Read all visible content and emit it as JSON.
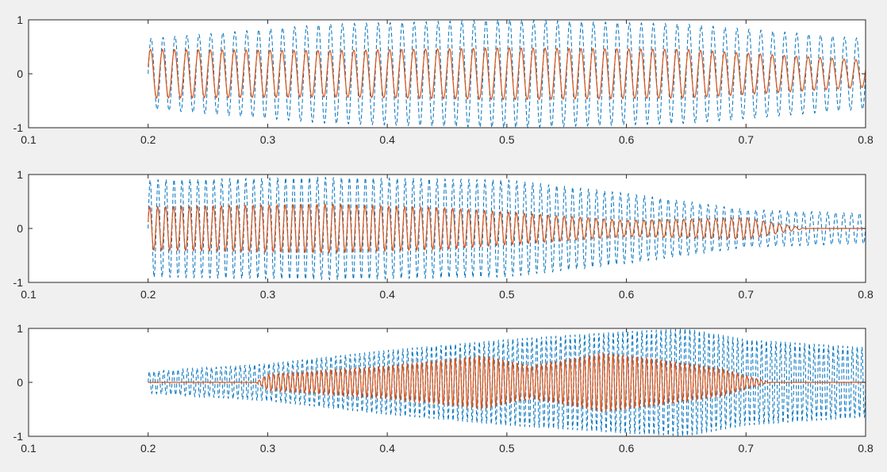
{
  "figure": {
    "background": "#f0f0f0",
    "axes_background": "#ffffff",
    "axes_color": "#262626"
  },
  "chart_data": [
    {
      "type": "line",
      "xlim": [
        0.1,
        0.8
      ],
      "ylim": [
        -1,
        1
      ],
      "xticks": [
        "0.1",
        "0.2",
        "0.3",
        "0.4",
        "0.5",
        "0.6",
        "0.7",
        "0.8"
      ],
      "yticks": [
        "1",
        "0",
        "-1"
      ],
      "grid": false,
      "x_range_of_signal": [
        0.2,
        0.8
      ],
      "series": [
        {
          "style": "dashed",
          "color": "#0072bd",
          "cycles": 60,
          "envelope": [
            [
              0.2,
              0.65
            ],
            [
              0.35,
              0.92
            ],
            [
              0.5,
              1.0
            ],
            [
              0.65,
              0.92
            ],
            [
              0.8,
              0.65
            ]
          ]
        },
        {
          "style": "solid",
          "color": "#d95319",
          "cycles": 60,
          "envelope": [
            [
              0.2,
              0.45
            ],
            [
              0.35,
              0.43
            ],
            [
              0.5,
              0.48
            ],
            [
              0.65,
              0.45
            ],
            [
              0.8,
              0.25
            ]
          ]
        }
      ]
    },
    {
      "type": "line",
      "xlim": [
        0.1,
        0.8
      ],
      "ylim": [
        -1,
        1
      ],
      "xticks": [
        "0.1",
        "0.2",
        "0.3",
        "0.4",
        "0.5",
        "0.6",
        "0.7",
        "0.8"
      ],
      "yticks": [
        "1",
        "0",
        "-1"
      ],
      "grid": false,
      "x_range_of_signal": [
        0.2,
        0.8
      ],
      "series": [
        {
          "style": "dashed",
          "color": "#0072bd",
          "cycles": 90,
          "envelope": [
            [
              0.2,
              0.9
            ],
            [
              0.35,
              0.95
            ],
            [
              0.5,
              0.9
            ],
            [
              0.6,
              0.65
            ],
            [
              0.7,
              0.35
            ],
            [
              0.8,
              0.28
            ]
          ]
        },
        {
          "style": "solid",
          "color": "#d95319",
          "cycles": 90,
          "envelope": [
            [
              0.2,
              0.4
            ],
            [
              0.35,
              0.45
            ],
            [
              0.45,
              0.38
            ],
            [
              0.6,
              0.15
            ],
            [
              0.7,
              0.2
            ],
            [
              0.75,
              0.0
            ],
            [
              0.8,
              0.0
            ]
          ]
        }
      ]
    },
    {
      "type": "line",
      "xlim": [
        0.1,
        0.8
      ],
      "ylim": [
        -1,
        1
      ],
      "xticks": [
        "0.1",
        "0.2",
        "0.3",
        "0.4",
        "0.5",
        "0.6",
        "0.7",
        "0.8"
      ],
      "yticks": [
        "1",
        "0",
        "-1"
      ],
      "grid": false,
      "x_range_of_signal": [
        0.2,
        0.8
      ],
      "series": [
        {
          "style": "dashed",
          "color": "#0072bd",
          "cycles": 150,
          "envelope": [
            [
              0.2,
              0.2
            ],
            [
              0.3,
              0.35
            ],
            [
              0.4,
              0.6
            ],
            [
              0.5,
              0.8
            ],
            [
              0.6,
              0.95
            ],
            [
              0.65,
              1.0
            ],
            [
              0.7,
              0.8
            ],
            [
              0.8,
              0.65
            ]
          ]
        },
        {
          "style": "solid",
          "color": "#d95319",
          "cycles": 150,
          "envelope": [
            [
              0.2,
              0.0
            ],
            [
              0.29,
              0.0
            ],
            [
              0.3,
              0.15
            ],
            [
              0.4,
              0.3
            ],
            [
              0.48,
              0.5
            ],
            [
              0.52,
              0.3
            ],
            [
              0.58,
              0.55
            ],
            [
              0.62,
              0.45
            ],
            [
              0.68,
              0.25
            ],
            [
              0.72,
              0.0
            ],
            [
              0.8,
              0.0
            ]
          ]
        }
      ]
    }
  ]
}
